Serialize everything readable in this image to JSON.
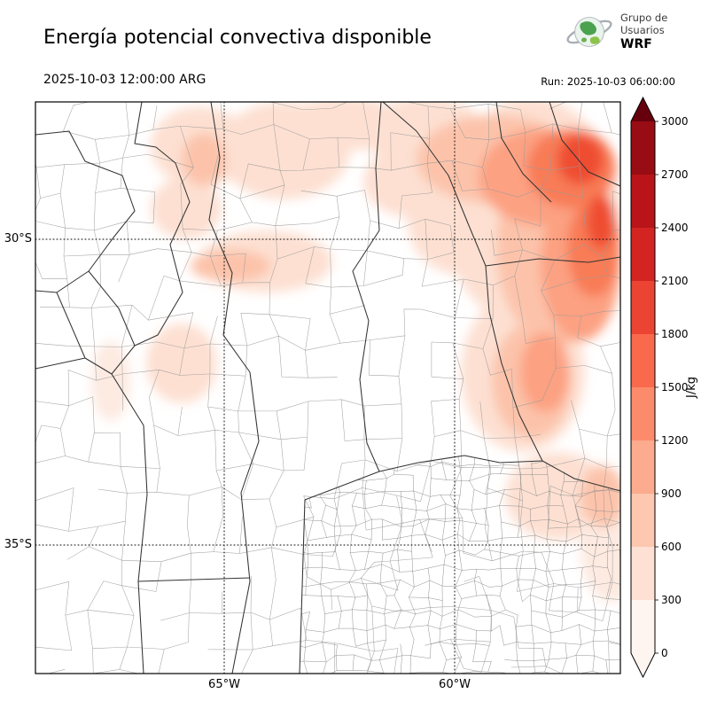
{
  "header": {
    "title": "Energía potencial convectiva disponible",
    "valid_time": "2025-10-03 12:00:00 ARG",
    "run_label": "Run: 2025-10-03 06:00:00",
    "logo": {
      "org_line1": "Grupo de",
      "org_line2": "Usuarios",
      "org_line3": "WRF"
    }
  },
  "map": {
    "y_ticks": [
      "30°S",
      "35°S"
    ],
    "x_ticks": [
      "65°W",
      "60°W"
    ]
  },
  "colorbar": {
    "unit": "J/kg",
    "tick_labels_top_to_bottom": [
      "3000",
      "2700",
      "2400",
      "2100",
      "1800",
      "1500",
      "1200",
      "900",
      "600",
      "300",
      "0"
    ],
    "segment_colors_bottom_to_top": [
      "#fff5f0",
      "#fee1d4",
      "#fdc7b0",
      "#fcab8e",
      "#fc8b6b",
      "#f9694c",
      "#ec4433",
      "#d32422",
      "#b81419",
      "#980c13"
    ],
    "over_color": "#67000d",
    "under_color": "#fff5f0"
  }
}
